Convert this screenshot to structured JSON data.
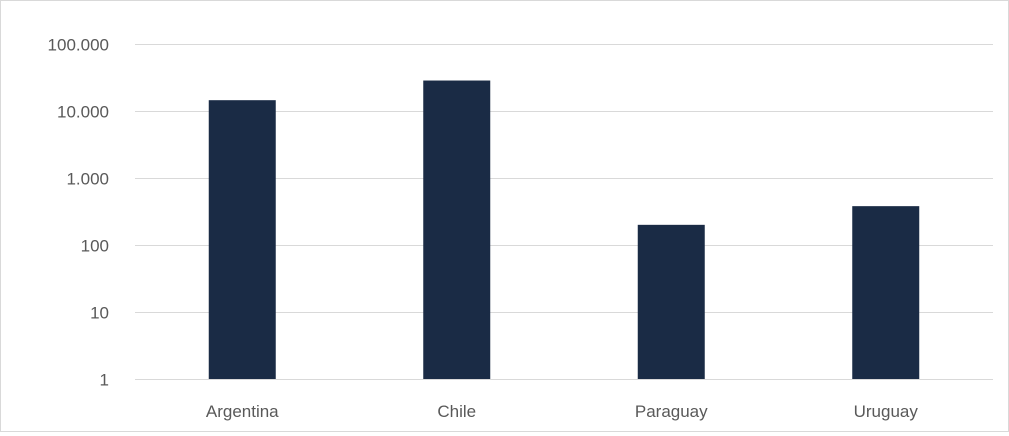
{
  "chart_data": {
    "type": "bar",
    "title": "",
    "xlabel": "",
    "ylabel": "",
    "y_scale": "log",
    "ylim": [
      1,
      100000
    ],
    "y_ticks": [
      1,
      10,
      100,
      1000,
      10000,
      100000
    ],
    "y_tick_labels": [
      "1",
      "10",
      "100",
      "1.000",
      "10.000",
      "100.000"
    ],
    "categories": [
      "Argentina",
      "Chile",
      "Paraguay",
      "Uruguay"
    ],
    "values": [
      14500,
      28500,
      200,
      380
    ],
    "grid": true,
    "legend": "none",
    "bar_color": "#1a2b45",
    "grid_color": "#d9d9d9",
    "axis_label_color": "#595959"
  }
}
